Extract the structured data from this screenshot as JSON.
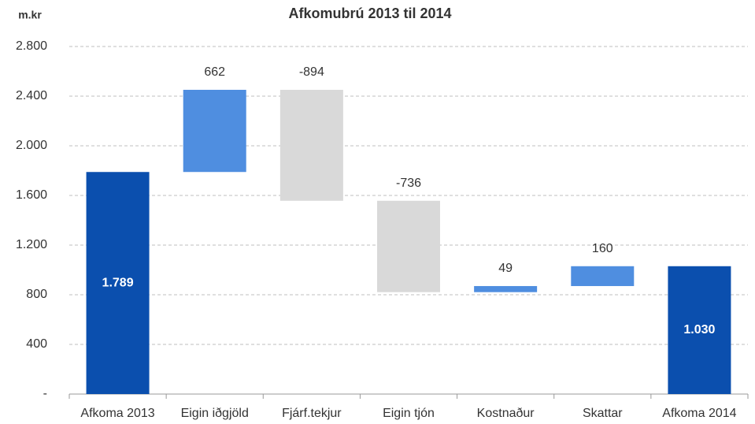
{
  "chart_data": {
    "type": "waterfall",
    "title": "Afkomubrú 2013 til 2014",
    "y_label": "m.kr",
    "categories": [
      "Afkoma 2013",
      "Eigin iðgjöld",
      "Fjárf.tekjur",
      "Eigin tjón",
      "Kostnaður",
      "Skattar",
      "Afkoma 2014"
    ],
    "values": [
      1789,
      662,
      -894,
      -736,
      49,
      160,
      1030
    ],
    "value_labels": [
      "1.789",
      "662",
      "-894",
      "-736",
      "49",
      "160",
      "1.030"
    ],
    "totals": [
      0,
      6
    ],
    "total_color": "#0b4fae",
    "increase_color": "#4f8ee0",
    "decrease_color": "#d9d9d9",
    "ylim": [
      0,
      2800
    ],
    "yticks": [
      {
        "value": 0,
        "label": "-"
      },
      400,
      800,
      {
        "value": 1200,
        "label": "1.200"
      },
      {
        "value": 1600,
        "label": "1.600"
      },
      {
        "value": 2000,
        "label": "2.000"
      },
      {
        "value": 2400,
        "label": "2.400"
      },
      {
        "value": 2800,
        "label": "2.800"
      }
    ],
    "grid": true
  }
}
